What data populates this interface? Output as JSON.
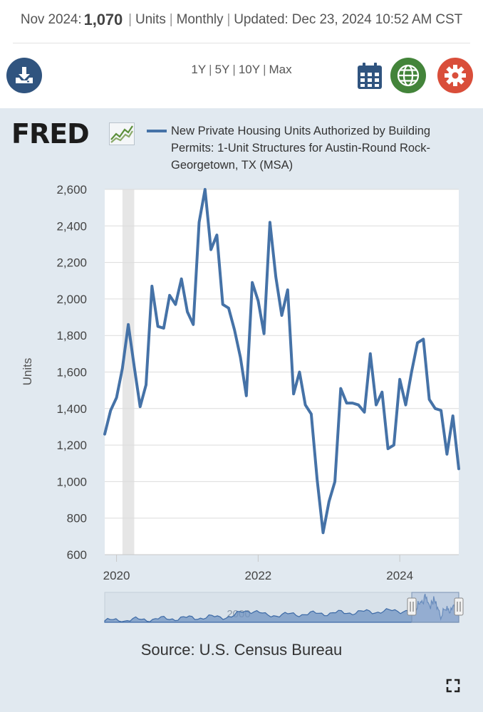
{
  "header": {
    "period": "Nov 2024:",
    "value": "1,070",
    "units": "Units",
    "frequency": "Monthly",
    "updated": "Updated: Dec 23, 2024 10:52 AM CST",
    "separator": "|"
  },
  "toolbar": {
    "ranges": [
      "1Y",
      "5Y",
      "10Y",
      "Max"
    ],
    "download_icon": "download-icon",
    "calendar_icon": "calendar-icon",
    "globe_icon": "globe-icon",
    "settings_icon": "gear-icon",
    "colors": {
      "download": "#30547f",
      "calendar": "#30547f",
      "globe": "#43843a",
      "settings": "#d94e3a"
    }
  },
  "logo": {
    "text": "FRED"
  },
  "chart_data": {
    "type": "line",
    "title": "",
    "ylabel": "Units",
    "xlabel": "",
    "ylim": [
      600,
      2600
    ],
    "yticks": [
      600,
      800,
      1000,
      1200,
      1400,
      1600,
      1800,
      2000,
      2200,
      2400,
      2600
    ],
    "ytick_labels": [
      "600",
      "800",
      "1,000",
      "1,200",
      "1,400",
      "1,600",
      "1,800",
      "2,000",
      "2,200",
      "2,400",
      "2,600"
    ],
    "xlim": [
      "2019-11",
      "2024-11"
    ],
    "xticks": [
      "2020-01",
      "2022-01",
      "2024-01"
    ],
    "xtick_labels": [
      "2020",
      "2022",
      "2024"
    ],
    "grid": true,
    "legend_position": "top",
    "recession_band": [
      "2020-02",
      "2020-04"
    ],
    "series": [
      {
        "name": "New Private Housing Units Authorized by Building Permits: 1-Unit Structures for Austin-Round Rock-Georgetown, TX (MSA)",
        "color": "#4572a7",
        "x": [
          "2019-11",
          "2019-12",
          "2020-01",
          "2020-02",
          "2020-03",
          "2020-04",
          "2020-05",
          "2020-06",
          "2020-07",
          "2020-08",
          "2020-09",
          "2020-10",
          "2020-11",
          "2020-12",
          "2021-01",
          "2021-02",
          "2021-03",
          "2021-04",
          "2021-05",
          "2021-06",
          "2021-07",
          "2021-08",
          "2021-09",
          "2021-10",
          "2021-11",
          "2021-12",
          "2022-01",
          "2022-02",
          "2022-03",
          "2022-04",
          "2022-05",
          "2022-06",
          "2022-07",
          "2022-08",
          "2022-09",
          "2022-10",
          "2022-11",
          "2022-12",
          "2023-01",
          "2023-02",
          "2023-03",
          "2023-04",
          "2023-05",
          "2023-06",
          "2023-07",
          "2023-08",
          "2023-09",
          "2023-10",
          "2023-11",
          "2023-12",
          "2024-01",
          "2024-02",
          "2024-03",
          "2024-04",
          "2024-05",
          "2024-06",
          "2024-07",
          "2024-08",
          "2024-09",
          "2024-10",
          "2024-11"
        ],
        "values": [
          1260,
          1390,
          1460,
          1620,
          1860,
          1630,
          1410,
          1530,
          2070,
          1850,
          1840,
          2020,
          1970,
          2110,
          1930,
          1860,
          2420,
          2600,
          2270,
          2350,
          1970,
          1950,
          1830,
          1680,
          1470,
          2090,
          1990,
          1810,
          2420,
          2120,
          1910,
          2050,
          1480,
          1600,
          1420,
          1370,
          1010,
          720,
          890,
          1000,
          1510,
          1430,
          1430,
          1420,
          1380,
          1700,
          1420,
          1490,
          1180,
          1200,
          1560,
          1420,
          1600,
          1760,
          1780,
          1450,
          1400,
          1390,
          1150,
          1360,
          1070
        ]
      }
    ]
  },
  "navigator": {
    "label": "2000"
  },
  "source": "Source: U.S. Census Bureau",
  "expand_icon": "expand-icon"
}
